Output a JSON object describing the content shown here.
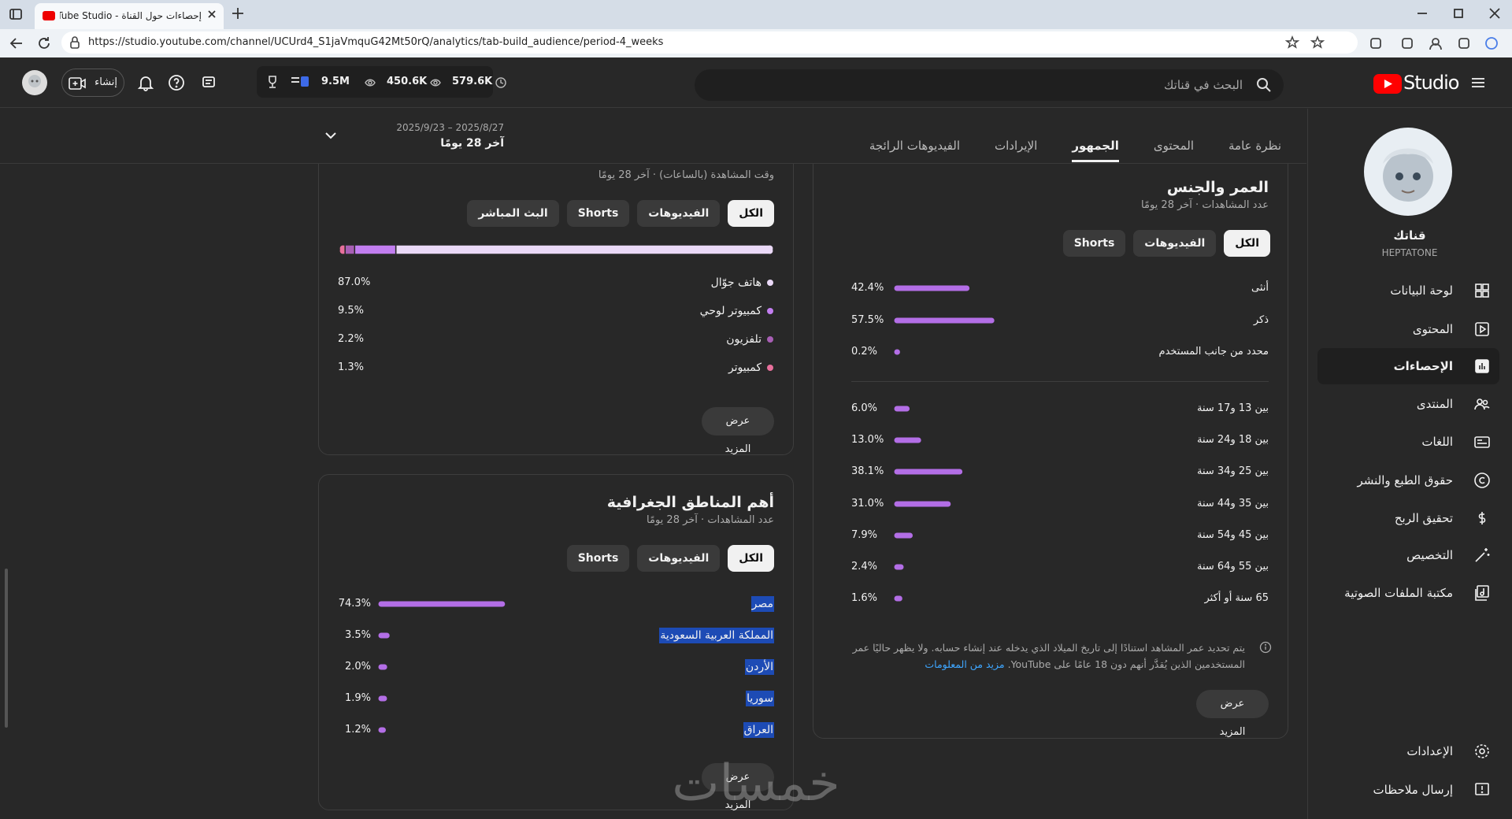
{
  "browser": {
    "tab_title": "إحصاءات حول القناة - YouTube Studio",
    "url": "https://studio.youtube.com/channel/UCUrd4_S1jaVmquG42Mt50rQ/analytics/tab-build_audience/period-4_weeks"
  },
  "header": {
    "logo": "Studio",
    "search_placeholder": "البحث في قناتك",
    "stats": [
      "9.5M",
      "450.6K",
      "579.6K"
    ],
    "create": "إنشاء"
  },
  "sidebar": {
    "channel_title": "قناتك",
    "channel_name": "HEPTATONE",
    "items": [
      {
        "label": "لوحة البيانات"
      },
      {
        "label": "المحتوى"
      },
      {
        "label": "الإحصاءات",
        "active": true
      },
      {
        "label": "المنتدى"
      },
      {
        "label": "اللغات"
      },
      {
        "label": "حقوق الطبع والنشر"
      },
      {
        "label": "تحقيق الربح"
      },
      {
        "label": "التخصيص"
      },
      {
        "label": "مكتبة الملفات الصوتية"
      }
    ],
    "bottom_items": [
      "الإعدادات",
      "إرسال ملاحظات"
    ]
  },
  "tabs": [
    {
      "label": "نظرة عامة"
    },
    {
      "label": "المحتوى"
    },
    {
      "label": "الجمهور",
      "active": true
    },
    {
      "label": "الإيرادات"
    },
    {
      "label": "الفيديوهات الرائجة"
    }
  ],
  "period": {
    "range": "2025/9/23 – 2025/8/27",
    "label": "آخر 28 يومًا"
  },
  "device_card": {
    "subtitle": "وقت المشاهدة (بالساعات) · آخر 28 يومًا",
    "filters": [
      {
        "label": "الكل",
        "active": true
      },
      {
        "label": "الفيديوهات"
      },
      {
        "label": "Shorts"
      },
      {
        "label": "البث المباشر"
      }
    ],
    "rows": [
      {
        "label": "هاتف جوّال",
        "value": 87.0,
        "value_label": "87.0%",
        "color": "#ead9f7"
      },
      {
        "label": "كمبيوتر لوحي",
        "value": 9.5,
        "value_label": "9.5%",
        "color": "#c27ef0"
      },
      {
        "label": "تلفزيون",
        "value": 2.2,
        "value_label": "2.2%",
        "color": "#a85fb5"
      },
      {
        "label": "كمبيوتر",
        "value": 1.3,
        "value_label": "1.3%",
        "color": "#e8709c"
      }
    ],
    "more": "عرض المزيد"
  },
  "age_gender_card": {
    "title": "العمر والجنس",
    "subtitle": "عدد المشاهدات · آخر 28 يومًا",
    "filters": [
      {
        "label": "الكل",
        "active": true
      },
      {
        "label": "الفيديوهات"
      },
      {
        "label": "Shorts"
      }
    ],
    "bar_color": "#b36ee6",
    "gender_rows": [
      {
        "label": "أنثى",
        "value": 42.4,
        "value_label": "42.4%"
      },
      {
        "label": "ذكر",
        "value": 57.5,
        "value_label": "57.5%"
      },
      {
        "label": "محدد من جانب المستخدم",
        "value": 0.2,
        "value_label": "0.2%"
      }
    ],
    "age_rows": [
      {
        "label": "بين 13 و17 سنة",
        "value": 6.0,
        "value_label": "6.0%"
      },
      {
        "label": "بين 18 و24 سنة",
        "value": 13.0,
        "value_label": "13.0%"
      },
      {
        "label": "بين 25 و34 سنة",
        "value": 38.1,
        "value_label": "38.1%"
      },
      {
        "label": "بين 35 و44 سنة",
        "value": 31.0,
        "value_label": "31.0%"
      },
      {
        "label": "بين 45 و54 سنة",
        "value": 7.9,
        "value_label": "7.9%"
      },
      {
        "label": "بين 55 و64 سنة",
        "value": 2.4,
        "value_label": "2.4%"
      },
      {
        "label": "65 سنة أو أكثر",
        "value": 1.6,
        "value_label": "1.6%"
      }
    ],
    "note": "يتم تحديد عمر المشاهد استنادًا إلى تاريخ الميلاد الذي يدخله عند إنشاء حسابه. ولا يظهر حاليًا عمر المستخدمين الذين يُقدَّر أنهم دون 18 عامًا على YouTube.",
    "note_link": "مزيد من المعلومات",
    "more": "عرض المزيد"
  },
  "geo_card": {
    "title": "أهم المناطق الجغرافية",
    "subtitle": "عدد المشاهدات · آخر 28 يومًا",
    "filters": [
      {
        "label": "الكل",
        "active": true
      },
      {
        "label": "الفيديوهات"
      },
      {
        "label": "Shorts"
      }
    ],
    "bar_color": "#b36ee6",
    "rows": [
      {
        "label": "مصر",
        "value": 74.3,
        "value_label": "74.3%"
      },
      {
        "label": "المملكة العربية السعودية",
        "value": 3.5,
        "value_label": "3.5%"
      },
      {
        "label": "الأردن",
        "value": 2.0,
        "value_label": "2.0%"
      },
      {
        "label": "سوريا",
        "value": 1.9,
        "value_label": "1.9%"
      },
      {
        "label": "العراق",
        "value": 1.2,
        "value_label": "1.2%"
      }
    ],
    "more": "عرض المزيد"
  },
  "watermark": "خمسات"
}
